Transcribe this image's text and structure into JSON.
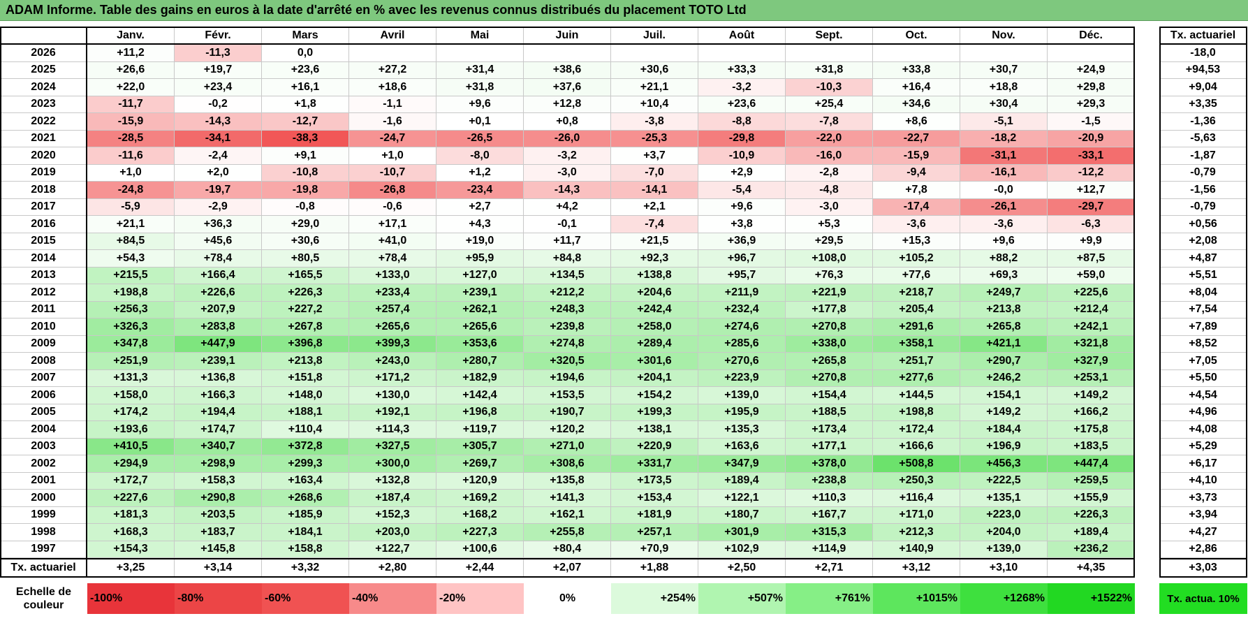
{
  "header": {
    "title": "ADAM Informe. Table des gains en euros à la date d'arrêté en % avec les revenus connus distribués du placement TOTO Ltd"
  },
  "table": {
    "columns": [
      "Janv.",
      "Févr.",
      "Mars",
      "Avril",
      "Mai",
      "Juin",
      "Juil.",
      "Août",
      "Sept.",
      "Oct.",
      "Nov.",
      "Déc."
    ],
    "total_header": "Tx. actuariel",
    "rows": [
      {
        "year": "2026",
        "values": [
          "+11,2",
          "-11,3",
          "0,0",
          null,
          null,
          null,
          null,
          null,
          null,
          null,
          null,
          null
        ],
        "total": "-18,0"
      },
      {
        "year": "2025",
        "values": [
          "+26,6",
          "+19,7",
          "+23,6",
          "+27,2",
          "+31,4",
          "+38,6",
          "+30,6",
          "+33,3",
          "+31,8",
          "+33,8",
          "+30,7",
          "+24,9"
        ],
        "total": "+94,53"
      },
      {
        "year": "2024",
        "values": [
          "+22,0",
          "+23,4",
          "+16,1",
          "+18,6",
          "+31,8",
          "+37,6",
          "+21,1",
          "-3,2",
          "-10,3",
          "+16,4",
          "+18,8",
          "+29,8"
        ],
        "total": "+9,04"
      },
      {
        "year": "2023",
        "values": [
          "-11,7",
          "-0,2",
          "+1,8",
          "-1,1",
          "+9,6",
          "+12,8",
          "+10,4",
          "+23,6",
          "+25,4",
          "+34,6",
          "+30,4",
          "+29,3"
        ],
        "total": "+3,35"
      },
      {
        "year": "2022",
        "values": [
          "-15,9",
          "-14,3",
          "-12,7",
          "-1,6",
          "+0,1",
          "+0,8",
          "-3,8",
          "-8,8",
          "-7,8",
          "+8,6",
          "-5,1",
          "-1,5"
        ],
        "total": "-1,36"
      },
      {
        "year": "2021",
        "values": [
          "-28,5",
          "-34,1",
          "-38,3",
          "-24,7",
          "-26,5",
          "-26,0",
          "-25,3",
          "-29,8",
          "-22,0",
          "-22,7",
          "-18,2",
          "-20,9"
        ],
        "total": "-5,63"
      },
      {
        "year": "2020",
        "values": [
          "-11,6",
          "-2,4",
          "+9,1",
          "+1,0",
          "-8,0",
          "-3,2",
          "+3,7",
          "-10,9",
          "-16,0",
          "-15,9",
          "-31,1",
          "-33,1"
        ],
        "total": "-1,87"
      },
      {
        "year": "2019",
        "values": [
          "+1,0",
          "+2,0",
          "-10,8",
          "-10,7",
          "+1,2",
          "-3,0",
          "-7,0",
          "+2,9",
          "-2,8",
          "-9,4",
          "-16,1",
          "-12,2"
        ],
        "total": "-0,79"
      },
      {
        "year": "2018",
        "values": [
          "-24,8",
          "-19,7",
          "-19,8",
          "-26,8",
          "-23,4",
          "-14,3",
          "-14,1",
          "-5,4",
          "-4,8",
          "+7,8",
          "-0,0",
          "+12,7"
        ],
        "total": "-1,56"
      },
      {
        "year": "2017",
        "values": [
          "-5,9",
          "-2,9",
          "-0,8",
          "-0,6",
          "+2,7",
          "+4,2",
          "+2,1",
          "+9,6",
          "-3,0",
          "-17,4",
          "-26,1",
          "-29,7"
        ],
        "total": "-0,79"
      },
      {
        "year": "2016",
        "values": [
          "+21,1",
          "+36,3",
          "+29,0",
          "+17,1",
          "+4,3",
          "-0,1",
          "-7,4",
          "+3,8",
          "+5,3",
          "-3,6",
          "-3,6",
          "-6,3"
        ],
        "total": "+0,56"
      },
      {
        "year": "2015",
        "values": [
          "+84,5",
          "+45,6",
          "+30,6",
          "+41,0",
          "+19,0",
          "+11,7",
          "+21,5",
          "+36,9",
          "+29,5",
          "+15,3",
          "+9,6",
          "+9,9"
        ],
        "total": "+2,08"
      },
      {
        "year": "2014",
        "values": [
          "+54,3",
          "+78,4",
          "+80,5",
          "+78,4",
          "+95,9",
          "+84,8",
          "+92,3",
          "+96,7",
          "+108,0",
          "+105,2",
          "+88,2",
          "+87,5"
        ],
        "total": "+4,87"
      },
      {
        "year": "2013",
        "values": [
          "+215,5",
          "+166,4",
          "+165,5",
          "+133,0",
          "+127,0",
          "+134,5",
          "+138,8",
          "+95,7",
          "+76,3",
          "+77,6",
          "+69,3",
          "+59,0"
        ],
        "total": "+5,51"
      },
      {
        "year": "2012",
        "values": [
          "+198,8",
          "+226,6",
          "+226,3",
          "+233,4",
          "+239,1",
          "+212,2",
          "+204,6",
          "+211,9",
          "+221,9",
          "+218,7",
          "+249,7",
          "+225,6"
        ],
        "total": "+8,04"
      },
      {
        "year": "2011",
        "values": [
          "+256,3",
          "+207,9",
          "+227,2",
          "+257,4",
          "+262,1",
          "+248,3",
          "+242,4",
          "+232,4",
          "+177,8",
          "+205,4",
          "+213,8",
          "+212,4"
        ],
        "total": "+7,54"
      },
      {
        "year": "2010",
        "values": [
          "+326,3",
          "+283,8",
          "+267,8",
          "+265,6",
          "+265,6",
          "+239,8",
          "+258,0",
          "+274,6",
          "+270,8",
          "+291,6",
          "+265,8",
          "+242,1"
        ],
        "total": "+7,89"
      },
      {
        "year": "2009",
        "values": [
          "+347,8",
          "+447,9",
          "+396,8",
          "+399,3",
          "+353,6",
          "+274,8",
          "+289,4",
          "+285,6",
          "+338,0",
          "+358,1",
          "+421,1",
          "+321,8"
        ],
        "total": "+8,52"
      },
      {
        "year": "2008",
        "values": [
          "+251,9",
          "+239,1",
          "+213,8",
          "+243,0",
          "+280,7",
          "+320,5",
          "+301,6",
          "+270,6",
          "+265,8",
          "+251,7",
          "+290,7",
          "+327,9"
        ],
        "total": "+7,05"
      },
      {
        "year": "2007",
        "values": [
          "+131,3",
          "+136,8",
          "+151,8",
          "+171,2",
          "+182,9",
          "+194,6",
          "+204,1",
          "+223,9",
          "+270,8",
          "+277,6",
          "+246,2",
          "+253,1"
        ],
        "total": "+5,50"
      },
      {
        "year": "2006",
        "values": [
          "+158,0",
          "+166,3",
          "+148,0",
          "+130,0",
          "+142,4",
          "+153,5",
          "+154,2",
          "+139,0",
          "+154,4",
          "+144,5",
          "+154,1",
          "+149,2"
        ],
        "total": "+4,54"
      },
      {
        "year": "2005",
        "values": [
          "+174,2",
          "+194,4",
          "+188,1",
          "+192,1",
          "+196,8",
          "+190,7",
          "+199,3",
          "+195,9",
          "+188,5",
          "+198,8",
          "+149,2",
          "+166,2"
        ],
        "total": "+4,96"
      },
      {
        "year": "2004",
        "values": [
          "+193,6",
          "+174,7",
          "+110,4",
          "+114,3",
          "+119,7",
          "+120,2",
          "+138,1",
          "+135,3",
          "+173,4",
          "+172,4",
          "+184,4",
          "+175,8"
        ],
        "total": "+4,08"
      },
      {
        "year": "2003",
        "values": [
          "+410,5",
          "+340,7",
          "+372,8",
          "+327,5",
          "+305,7",
          "+271,0",
          "+220,9",
          "+163,6",
          "+177,1",
          "+166,6",
          "+196,9",
          "+183,5"
        ],
        "total": "+5,29"
      },
      {
        "year": "2002",
        "values": [
          "+294,9",
          "+298,9",
          "+299,3",
          "+300,0",
          "+269,7",
          "+308,6",
          "+331,7",
          "+347,9",
          "+378,0",
          "+508,8",
          "+456,3",
          "+447,4"
        ],
        "total": "+6,17"
      },
      {
        "year": "2001",
        "values": [
          "+172,7",
          "+158,3",
          "+163,4",
          "+132,8",
          "+120,9",
          "+135,8",
          "+173,5",
          "+189,4",
          "+238,8",
          "+250,3",
          "+222,5",
          "+259,5"
        ],
        "total": "+4,10"
      },
      {
        "year": "2000",
        "values": [
          "+227,6",
          "+290,8",
          "+268,6",
          "+187,4",
          "+169,2",
          "+141,3",
          "+153,4",
          "+122,1",
          "+110,3",
          "+116,4",
          "+135,1",
          "+155,9"
        ],
        "total": "+3,73"
      },
      {
        "year": "1999",
        "values": [
          "+181,3",
          "+203,5",
          "+185,9",
          "+152,3",
          "+168,2",
          "+162,1",
          "+181,9",
          "+180,7",
          "+167,7",
          "+171,0",
          "+223,0",
          "+226,3"
        ],
        "total": "+3,94"
      },
      {
        "year": "1998",
        "values": [
          "+168,3",
          "+183,7",
          "+184,1",
          "+203,0",
          "+227,3",
          "+255,8",
          "+257,1",
          "+301,9",
          "+315,3",
          "+212,3",
          "+204,0",
          "+189,4"
        ],
        "total": "+4,27"
      },
      {
        "year": "1997",
        "values": [
          "+154,3",
          "+145,8",
          "+158,8",
          "+122,7",
          "+100,6",
          "+80,4",
          "+70,9",
          "+102,9",
          "+114,9",
          "+140,9",
          "+139,0",
          "+236,2"
        ],
        "total": "+2,86"
      }
    ],
    "footer": {
      "label": "Tx. actuariel",
      "values": [
        "+3,25",
        "+3,14",
        "+3,32",
        "+2,80",
        "+2,44",
        "+2,07",
        "+1,88",
        "+2,50",
        "+2,71",
        "+3,12",
        "+3,10",
        "+4,35"
      ],
      "total": "+3,03"
    }
  },
  "scale": {
    "label": "Echelle de couleur",
    "steps": [
      "-100%",
      "-80%",
      "-60%",
      "-40%",
      "-20%",
      "0%",
      "+254%",
      "+507%",
      "+761%",
      "+1015%",
      "+1268%",
      "+1522%"
    ],
    "total": "Tx. actua. 10%"
  }
}
